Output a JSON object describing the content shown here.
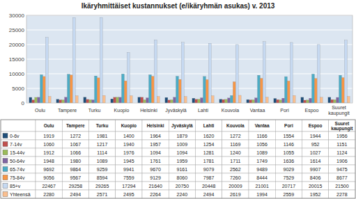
{
  "chart_data": {
    "type": "bar",
    "title": "Ikäryhmittäiset kustannukset (e/ikäryhmän asukas) v. 2013",
    "categories": [
      "Oulu",
      "Tampere",
      "Turku",
      "Kuopio",
      "Helsinki",
      "Jyväskylä",
      "Lahti",
      "Kouvola",
      "Vantaa",
      "Pori",
      "Espoo",
      "Suuret\nkaupungit"
    ],
    "series": [
      {
        "name": "0-6v",
        "color": "#1f4e79",
        "values": [
          1919,
          1272,
          1981,
          1400,
          1964,
          1879,
          1620,
          1272,
          1166,
          1554,
          1944,
          1956
        ]
      },
      {
        "name": "7-14v",
        "color": "#c0504d",
        "values": [
          1060,
          1067,
          1217,
          1940,
          1957,
          1009,
          1254,
          1169,
          1056,
          1146,
          952,
          1151
        ]
      },
      {
        "name": "15-44v",
        "color": "#9bbb59",
        "values": [
          1912,
          1066,
          1114,
          1976,
          1094,
          1094,
          1281,
          1240,
          1089,
          1055,
          1027,
          1124
        ]
      },
      {
        "name": "50-64v",
        "color": "#8064a2",
        "values": [
          1948,
          1980,
          1089,
          1945,
          1761,
          1959,
          1781,
          1711,
          1749,
          1636,
          1614,
          1906
        ]
      },
      {
        "name": "65-74v",
        "color": "#4bacc6",
        "values": [
          9692,
          9864,
          9259,
          9941,
          9670,
          9161,
          9079,
          2562,
          9489,
          9029,
          9907,
          9475
        ]
      },
      {
        "name": "75-84v",
        "color": "#f79646",
        "values": [
          9056,
          9567,
          8594,
          7559,
          9129,
          8060,
          7987,
          7260,
          8444,
          7529,
          8406,
          8677
        ]
      },
      {
        "name": "85+v",
        "color": "#c6d9f1",
        "values": [
          22467,
          29258,
          29265,
          17294,
          21640,
          20750,
          20448,
          20009,
          21001,
          20717,
          20015,
          21500
        ]
      },
      {
        "name": "Yhteensä",
        "color": "#fabf8f",
        "values": [
          2280,
          2494,
          2571,
          2495,
          2264,
          2240,
          2494,
          2619,
          1994,
          2559,
          1952,
          2278
        ]
      }
    ],
    "ylim": [
      0,
      30000
    ],
    "yticks": [
      0,
      5000,
      10000,
      15000,
      20000,
      25000,
      30000
    ],
    "grid": true
  }
}
